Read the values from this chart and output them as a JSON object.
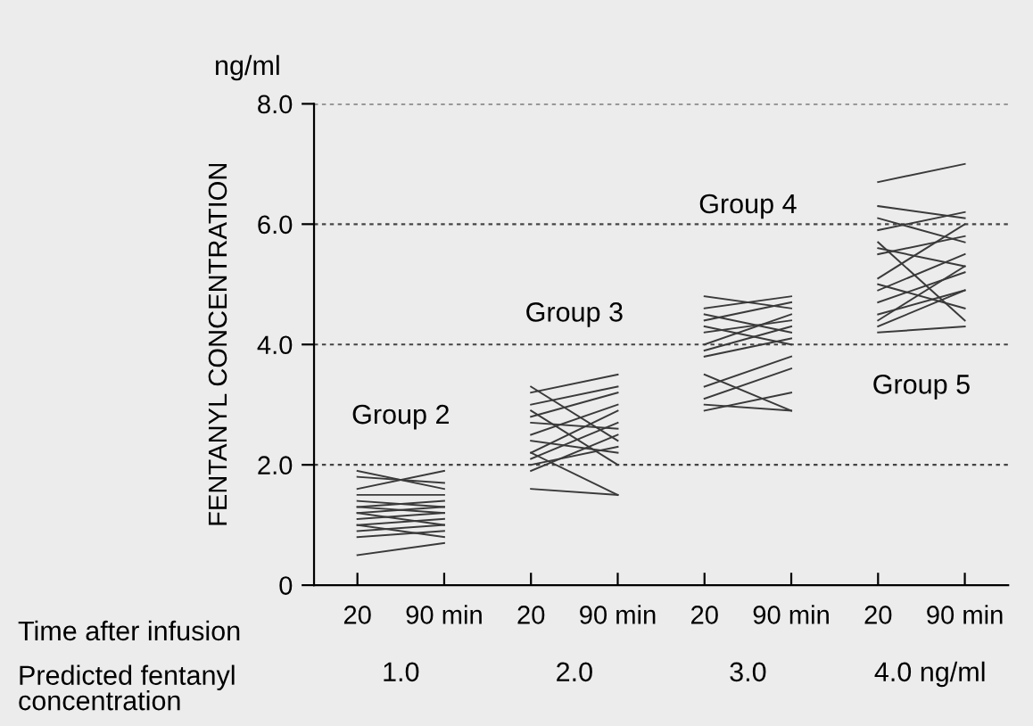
{
  "chart_data": {
    "type": "line",
    "ylabel": "FENTANYL CONCENTRATION",
    "categories": [
      "20",
      "90 min",
      "20",
      "90 min",
      "20",
      "90 min",
      "20",
      "90 min"
    ],
    "ylim": [
      0,
      8
    ],
    "yticks": [
      0,
      {
        "value": 2,
        "label": "2.0"
      },
      {
        "value": 4,
        "label": "4.0"
      },
      {
        "value": 6,
        "label": "6.0"
      },
      {
        "value": 8,
        "label": "8.0"
      }
    ],
    "grid": "y",
    "marker": "none",
    "line_style": "solid",
    "legend": false,
    "annotations": [
      "ng/ml",
      "Group 2",
      "Group 3",
      "Group 4",
      "Group 5",
      "Time after infusion",
      "Predicted fentanyl\nconcentration",
      "1.0",
      "2.0",
      "3.0",
      "4.0 ng/ml"
    ],
    "series": [
      {
        "color": "#3a3a3a",
        "values": [
          1.9,
          1.6,
          null,
          null,
          null,
          null,
          null,
          null
        ]
      },
      {
        "color": "#3a3a3a",
        "values": [
          1.6,
          1.9,
          null,
          null,
          null,
          null,
          null,
          null
        ]
      },
      {
        "color": "#3a3a3a",
        "values": [
          1.8,
          1.7,
          null,
          null,
          null,
          null,
          null,
          null
        ]
      },
      {
        "color": "#3a3a3a",
        "values": [
          1.5,
          1.5,
          null,
          null,
          null,
          null,
          null,
          null
        ]
      },
      {
        "color": "#3a3a3a",
        "values": [
          1.4,
          1.3,
          null,
          null,
          null,
          null,
          null,
          null
        ]
      },
      {
        "color": "#3a3a3a",
        "values": [
          1.3,
          1.4,
          null,
          null,
          null,
          null,
          null,
          null
        ]
      },
      {
        "color": "#3a3a3a",
        "values": [
          1.2,
          1.3,
          null,
          null,
          null,
          null,
          null,
          null
        ]
      },
      {
        "color": "#3a3a3a",
        "values": [
          1.1,
          1.2,
          null,
          null,
          null,
          null,
          null,
          null
        ]
      },
      {
        "color": "#3a3a3a",
        "values": [
          1.0,
          1.1,
          null,
          null,
          null,
          null,
          null,
          null
        ]
      },
      {
        "color": "#3a3a3a",
        "values": [
          1.2,
          1.0,
          null,
          null,
          null,
          null,
          null,
          null
        ]
      },
      {
        "color": "#3a3a3a",
        "values": [
          0.9,
          1.0,
          null,
          null,
          null,
          null,
          null,
          null
        ]
      },
      {
        "color": "#3a3a3a",
        "values": [
          0.8,
          0.9,
          null,
          null,
          null,
          null,
          null,
          null
        ]
      },
      {
        "color": "#3a3a3a",
        "values": [
          1.0,
          0.8,
          null,
          null,
          null,
          null,
          null,
          null
        ]
      },
      {
        "color": "#3a3a3a",
        "values": [
          0.5,
          0.7,
          null,
          null,
          null,
          null,
          null,
          null
        ]
      },
      {
        "color": "#3a3a3a",
        "values": [
          1.3,
          1.2,
          null,
          null,
          null,
          null,
          null,
          null
        ]
      },
      {
        "color": "#3a3a3a",
        "values": [
          null,
          null,
          3.2,
          3.5,
          null,
          null,
          null,
          null
        ]
      },
      {
        "color": "#3a3a3a",
        "values": [
          null,
          null,
          3.0,
          3.3,
          null,
          null,
          null,
          null
        ]
      },
      {
        "color": "#3a3a3a",
        "values": [
          null,
          null,
          2.8,
          3.2,
          null,
          null,
          null,
          null
        ]
      },
      {
        "color": "#3a3a3a",
        "values": [
          null,
          null,
          3.3,
          2.4,
          null,
          null,
          null,
          null
        ]
      },
      {
        "color": "#3a3a3a",
        "values": [
          null,
          null,
          2.5,
          3.0,
          null,
          null,
          null,
          null
        ]
      },
      {
        "color": "#3a3a3a",
        "values": [
          null,
          null,
          2.7,
          2.6,
          null,
          null,
          null,
          null
        ]
      },
      {
        "color": "#3a3a3a",
        "values": [
          null,
          null,
          2.2,
          2.9,
          null,
          null,
          null,
          null
        ]
      },
      {
        "color": "#3a3a3a",
        "values": [
          null,
          null,
          2.4,
          2.2,
          null,
          null,
          null,
          null
        ]
      },
      {
        "color": "#3a3a3a",
        "values": [
          null,
          null,
          2.1,
          2.7,
          null,
          null,
          null,
          null
        ]
      },
      {
        "color": "#3a3a3a",
        "values": [
          null,
          null,
          2.9,
          2.0,
          null,
          null,
          null,
          null
        ]
      },
      {
        "color": "#3a3a3a",
        "values": [
          null,
          null,
          2.0,
          2.3,
          null,
          null,
          null,
          null
        ]
      },
      {
        "color": "#3a3a3a",
        "values": [
          null,
          null,
          2.2,
          1.5,
          null,
          null,
          null,
          null
        ]
      },
      {
        "color": "#3a3a3a",
        "values": [
          null,
          null,
          1.9,
          2.5,
          null,
          null,
          null,
          null
        ]
      },
      {
        "color": "#3a3a3a",
        "values": [
          null,
          null,
          1.6,
          1.5,
          null,
          null,
          null,
          null
        ]
      },
      {
        "color": "#3a3a3a",
        "values": [
          null,
          null,
          null,
          null,
          4.8,
          4.6,
          null,
          null
        ]
      },
      {
        "color": "#3a3a3a",
        "values": [
          null,
          null,
          null,
          null,
          4.6,
          4.8,
          null,
          null
        ]
      },
      {
        "color": "#3a3a3a",
        "values": [
          null,
          null,
          null,
          null,
          4.5,
          4.2,
          null,
          null
        ]
      },
      {
        "color": "#3a3a3a",
        "values": [
          null,
          null,
          null,
          null,
          4.4,
          4.7,
          null,
          null
        ]
      },
      {
        "color": "#3a3a3a",
        "values": [
          null,
          null,
          null,
          null,
          4.2,
          4.4,
          null,
          null
        ]
      },
      {
        "color": "#3a3a3a",
        "values": [
          null,
          null,
          null,
          null,
          4.3,
          4.0,
          null,
          null
        ]
      },
      {
        "color": "#3a3a3a",
        "values": [
          null,
          null,
          null,
          null,
          4.0,
          4.5,
          null,
          null
        ]
      },
      {
        "color": "#3a3a3a",
        "values": [
          null,
          null,
          null,
          null,
          3.9,
          4.3,
          null,
          null
        ]
      },
      {
        "color": "#3a3a3a",
        "values": [
          null,
          null,
          null,
          null,
          3.8,
          4.1,
          null,
          null
        ]
      },
      {
        "color": "#3a3a3a",
        "values": [
          null,
          null,
          null,
          null,
          3.3,
          3.8,
          null,
          null
        ]
      },
      {
        "color": "#3a3a3a",
        "values": [
          null,
          null,
          null,
          null,
          3.1,
          3.6,
          null,
          null
        ]
      },
      {
        "color": "#3a3a3a",
        "values": [
          null,
          null,
          null,
          null,
          3.5,
          2.9,
          null,
          null
        ]
      },
      {
        "color": "#3a3a3a",
        "values": [
          null,
          null,
          null,
          null,
          2.9,
          3.2,
          null,
          null
        ]
      },
      {
        "color": "#3a3a3a",
        "values": [
          null,
          null,
          null,
          null,
          3.0,
          2.9,
          null,
          null
        ]
      },
      {
        "color": "#3a3a3a",
        "values": [
          null,
          null,
          null,
          null,
          null,
          null,
          6.7,
          7.0
        ]
      },
      {
        "color": "#3a3a3a",
        "values": [
          null,
          null,
          null,
          null,
          null,
          null,
          6.3,
          6.1
        ]
      },
      {
        "color": "#3a3a3a",
        "values": [
          null,
          null,
          null,
          null,
          null,
          null,
          6.1,
          5.7
        ]
      },
      {
        "color": "#3a3a3a",
        "values": [
          null,
          null,
          null,
          null,
          null,
          null,
          5.9,
          6.2
        ]
      },
      {
        "color": "#3a3a3a",
        "values": [
          null,
          null,
          null,
          null,
          null,
          null,
          5.6,
          5.3
        ]
      },
      {
        "color": "#3a3a3a",
        "values": [
          null,
          null,
          null,
          null,
          null,
          null,
          5.5,
          5.8
        ]
      },
      {
        "color": "#3a3a3a",
        "values": [
          null,
          null,
          null,
          null,
          null,
          null,
          5.1,
          6.0
        ]
      },
      {
        "color": "#3a3a3a",
        "values": [
          null,
          null,
          null,
          null,
          null,
          null,
          5.0,
          4.6
        ]
      },
      {
        "color": "#3a3a3a",
        "values": [
          null,
          null,
          null,
          null,
          null,
          null,
          4.9,
          5.5
        ]
      },
      {
        "color": "#3a3a3a",
        "values": [
          null,
          null,
          null,
          null,
          null,
          null,
          4.7,
          5.2
        ]
      },
      {
        "color": "#3a3a3a",
        "values": [
          null,
          null,
          null,
          null,
          null,
          null,
          4.5,
          4.9
        ]
      },
      {
        "color": "#3a3a3a",
        "values": [
          null,
          null,
          null,
          null,
          null,
          null,
          4.4,
          5.3
        ]
      },
      {
        "color": "#3a3a3a",
        "values": [
          null,
          null,
          null,
          null,
          null,
          null,
          4.2,
          4.3
        ]
      },
      {
        "color": "#3a3a3a",
        "values": [
          null,
          null,
          null,
          null,
          null,
          null,
          4.3,
          4.9
        ]
      },
      {
        "color": "#3a3a3a",
        "values": [
          null,
          null,
          null,
          null,
          null,
          null,
          5.7,
          4.4
        ]
      }
    ]
  }
}
